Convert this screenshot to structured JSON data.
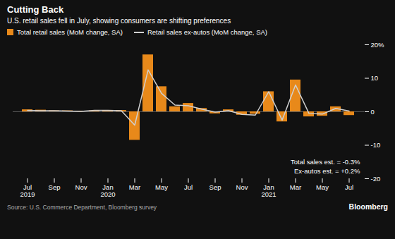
{
  "chart_data": {
    "type": "bar",
    "title": "Cutting Back",
    "subtitle": "U.S. retail sales fell in July, showing consumers are shifting preferences",
    "source": "Source: U.S. Commerce Department, Bloomberg survey",
    "credit": "Bloomberg",
    "annotations": [
      "Total sales est. = -0.3%",
      "Ex-autos est. = +0.2%"
    ],
    "categories": [
      "Jul\n2019",
      null,
      "Sep",
      null,
      "Nov",
      null,
      "Jan\n2020",
      null,
      "Mar",
      null,
      "May",
      null,
      "Jul",
      null,
      "Sep",
      null,
      "Nov",
      null,
      "Jan\n2021",
      null,
      "Mar",
      null,
      "May",
      null,
      "Jul"
    ],
    "series": [
      {
        "name": "Total retail sales (MoM change, SA)",
        "type": "bar",
        "color": "#E8891A",
        "values": [
          0.6,
          0.5,
          0.3,
          0.3,
          0.2,
          0.3,
          0.4,
          0.4,
          -8.5,
          17.0,
          7.5,
          1.5,
          2.5,
          1.0,
          -0.6,
          0.6,
          -1.0,
          -0.7,
          6.0,
          -3.0,
          9.5,
          -1.5,
          -1.3,
          1.5,
          -1.1
        ]
      },
      {
        "name": "Retail sales ex-autos (MoM change, SA)",
        "type": "line",
        "color": "#D0D0D0",
        "values": [
          0.4,
          0.3,
          0.3,
          0.2,
          0.1,
          0.4,
          0.4,
          0.3,
          -4.0,
          12.5,
          5.5,
          2.0,
          1.8,
          0.8,
          -0.1,
          0.3,
          -0.8,
          -1.0,
          6.0,
          -2.5,
          8.0,
          -0.5,
          -0.7,
          1.0,
          0.2
        ]
      }
    ],
    "ylim": [
      -20,
      20
    ],
    "yticks": [
      -20,
      -10,
      0,
      10,
      {
        "value": 20,
        "label": "20%"
      }
    ],
    "grid": false,
    "legend": "top"
  }
}
